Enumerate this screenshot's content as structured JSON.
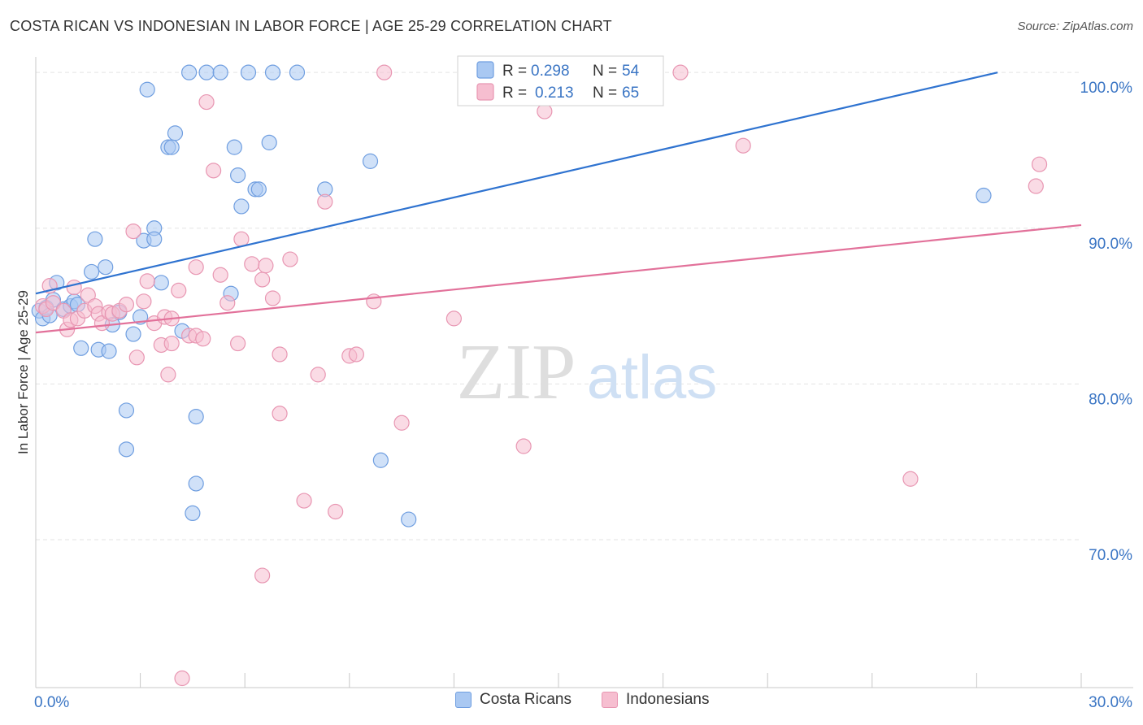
{
  "header": {
    "title": "COSTA RICAN VS INDONESIAN IN LABOR FORCE | AGE 25-29 CORRELATION CHART",
    "source": "Source: ZipAtlas.com"
  },
  "watermark": {
    "zip": "ZIP",
    "atlas": "atlas"
  },
  "colors": {
    "blue_fill": "#a9c8f2",
    "blue_stroke": "#6f9ee0",
    "blue_line": "#2f73d0",
    "pink_fill": "#f6bed0",
    "pink_stroke": "#e896b2",
    "pink_line": "#e2719a",
    "tick_label": "#3a75c4",
    "grid": "#e3e3e3"
  },
  "legend": {
    "rows": [
      {
        "r_label": "R =",
        "r_value": "0.298",
        "n_label": "N =",
        "n_value": "54",
        "series": "blue"
      },
      {
        "r_label": "R =",
        "r_value": "0.213",
        "n_label": "N =",
        "n_value": "65",
        "series": "pink"
      }
    ]
  },
  "bottom_legend": [
    {
      "label": "Costa Ricans",
      "series": "blue"
    },
    {
      "label": "Indonesians",
      "series": "pink"
    }
  ],
  "chart_data": {
    "type": "scatter",
    "ylabel": "In Labor Force | Age 25-29",
    "xlim": [
      0,
      30
    ],
    "ylim": [
      60.5,
      101
    ],
    "x_tick_labels": [
      {
        "value": 0,
        "label": "0.0%"
      },
      {
        "value": 30,
        "label": "30.0%"
      }
    ],
    "y_tick_labels": [
      {
        "value": 100,
        "label": "100.0%"
      },
      {
        "value": 90,
        "label": "90.0%"
      },
      {
        "value": 80,
        "label": "80.0%"
      },
      {
        "value": 70,
        "label": "70.0%"
      }
    ],
    "x_minor_ticks": [
      3,
      6,
      9,
      12,
      15,
      18,
      21,
      24,
      27,
      30
    ],
    "grid": true,
    "series": [
      {
        "name": "Costa Ricans",
        "color": "blue",
        "trend": {
          "x": [
            0,
            27.6
          ],
          "y": [
            85.8,
            100.0
          ]
        },
        "points": [
          [
            0.1,
            84.7
          ],
          [
            0.2,
            84.2
          ],
          [
            0.3,
            84.9
          ],
          [
            0.4,
            84.4
          ],
          [
            0.5,
            85.4
          ],
          [
            0.6,
            86.5
          ],
          [
            0.8,
            84.8
          ],
          [
            1.0,
            85.0
          ],
          [
            1.1,
            85.3
          ],
          [
            1.2,
            85.1
          ],
          [
            1.3,
            82.3
          ],
          [
            1.6,
            87.2
          ],
          [
            1.7,
            89.3
          ],
          [
            1.8,
            82.2
          ],
          [
            2.0,
            87.5
          ],
          [
            2.1,
            82.1
          ],
          [
            2.2,
            83.8
          ],
          [
            2.4,
            84.6
          ],
          [
            2.6,
            75.8
          ],
          [
            2.6,
            78.3
          ],
          [
            2.8,
            83.2
          ],
          [
            3.0,
            84.3
          ],
          [
            3.1,
            89.2
          ],
          [
            3.2,
            98.9
          ],
          [
            3.4,
            90.0
          ],
          [
            3.4,
            89.3
          ],
          [
            3.6,
            86.5
          ],
          [
            3.8,
            95.2
          ],
          [
            3.9,
            95.2
          ],
          [
            4.0,
            96.1
          ],
          [
            4.2,
            83.4
          ],
          [
            4.4,
            100
          ],
          [
            4.5,
            71.7
          ],
          [
            4.6,
            73.6
          ],
          [
            4.6,
            77.9
          ],
          [
            4.9,
            100
          ],
          [
            5.3,
            100
          ],
          [
            5.6,
            85.8
          ],
          [
            5.7,
            95.2
          ],
          [
            5.8,
            93.4
          ],
          [
            5.9,
            91.4
          ],
          [
            6.1,
            100
          ],
          [
            6.3,
            92.5
          ],
          [
            6.4,
            92.5
          ],
          [
            6.7,
            95.5
          ],
          [
            6.8,
            100
          ],
          [
            7.5,
            100
          ],
          [
            8.3,
            92.5
          ],
          [
            9.6,
            94.3
          ],
          [
            9.9,
            75.1
          ],
          [
            10.7,
            71.3
          ],
          [
            15.4,
            100
          ],
          [
            16.5,
            100
          ],
          [
            27.2,
            92.1
          ]
        ]
      },
      {
        "name": "Indonesians",
        "color": "pink",
        "trend": {
          "x": [
            0,
            30
          ],
          "y": [
            83.3,
            90.2
          ]
        },
        "points": [
          [
            0.2,
            85.0
          ],
          [
            0.3,
            84.8
          ],
          [
            0.4,
            86.3
          ],
          [
            0.5,
            85.2
          ],
          [
            0.8,
            84.7
          ],
          [
            0.9,
            83.5
          ],
          [
            1.0,
            84.1
          ],
          [
            1.1,
            86.2
          ],
          [
            1.2,
            84.2
          ],
          [
            1.4,
            84.7
          ],
          [
            1.5,
            85.7
          ],
          [
            1.7,
            85.0
          ],
          [
            1.8,
            84.5
          ],
          [
            1.9,
            83.9
          ],
          [
            2.1,
            84.6
          ],
          [
            2.2,
            84.5
          ],
          [
            2.4,
            84.7
          ],
          [
            2.6,
            85.1
          ],
          [
            2.8,
            89.8
          ],
          [
            2.9,
            81.7
          ],
          [
            3.1,
            85.3
          ],
          [
            3.2,
            86.6
          ],
          [
            3.4,
            83.9
          ],
          [
            3.6,
            82.5
          ],
          [
            3.7,
            84.3
          ],
          [
            3.8,
            80.6
          ],
          [
            3.9,
            84.2
          ],
          [
            3.9,
            82.6
          ],
          [
            4.1,
            86.0
          ],
          [
            4.2,
            61.1
          ],
          [
            4.4,
            83.1
          ],
          [
            4.6,
            83.1
          ],
          [
            4.6,
            87.5
          ],
          [
            4.8,
            82.9
          ],
          [
            4.9,
            98.1
          ],
          [
            5.1,
            93.7
          ],
          [
            5.3,
            87.0
          ],
          [
            5.5,
            85.2
          ],
          [
            5.8,
            82.6
          ],
          [
            5.9,
            89.3
          ],
          [
            6.2,
            87.7
          ],
          [
            6.5,
            86.7
          ],
          [
            6.5,
            67.7
          ],
          [
            6.6,
            87.6
          ],
          [
            6.8,
            85.5
          ],
          [
            7.0,
            81.9
          ],
          [
            7.0,
            78.1
          ],
          [
            7.3,
            88.0
          ],
          [
            7.7,
            72.5
          ],
          [
            8.1,
            80.6
          ],
          [
            8.3,
            91.7
          ],
          [
            8.6,
            71.8
          ],
          [
            9.0,
            81.8
          ],
          [
            9.2,
            81.9
          ],
          [
            9.7,
            85.3
          ],
          [
            10.0,
            100
          ],
          [
            10.5,
            77.5
          ],
          [
            12.0,
            84.2
          ],
          [
            14.0,
            76.0
          ],
          [
            14.6,
            97.5
          ],
          [
            18.5,
            100
          ],
          [
            20.3,
            95.3
          ],
          [
            25.1,
            73.9
          ],
          [
            28.7,
            92.7
          ],
          [
            28.8,
            94.1
          ]
        ]
      }
    ]
  }
}
